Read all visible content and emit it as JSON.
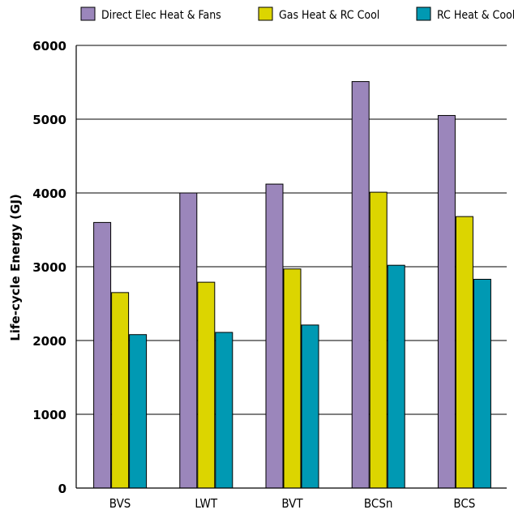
{
  "chart_data": {
    "type": "bar",
    "title": "",
    "xlabel": "",
    "ylabel": "Life-cycle Energy (GJ)",
    "ylim": [
      0,
      6000
    ],
    "yticks": [
      0,
      1000,
      2000,
      3000,
      4000,
      5000,
      6000
    ],
    "grid": true,
    "legend_position": "top",
    "categories": [
      "BVS",
      "LWT",
      "BVT",
      "BCSn",
      "BCS"
    ],
    "series": [
      {
        "name": "Direct Elec Heat & Fans",
        "color": "#9b86bb",
        "values": [
          3600,
          4000,
          4120,
          5510,
          5050
        ]
      },
      {
        "name": "Gas Heat & RC Cool",
        "color": "#dcd500",
        "values": [
          2650,
          2790,
          2970,
          4010,
          3680
        ]
      },
      {
        "name": "RC Heat & Cool",
        "color": "#0099b3",
        "values": [
          2080,
          2110,
          2210,
          3020,
          2830
        ]
      }
    ]
  }
}
